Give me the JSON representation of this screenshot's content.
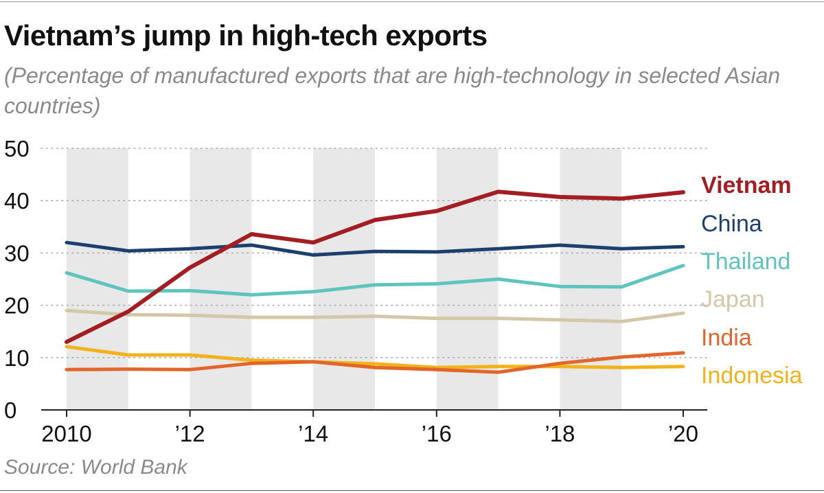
{
  "title": "Vietnam’s jump in high-tech exports",
  "subtitle": "(Percentage of manufactured exports that are high-technology in selected Asian countries)",
  "source": "Source: World Bank",
  "chart_data": {
    "type": "line",
    "title": "Vietnam’s jump in high-tech exports",
    "subtitle": "(Percentage of manufactured exports that are high-technology in selected Asian countries)",
    "xlabel": "",
    "ylabel": "",
    "x": [
      2010,
      2011,
      2012,
      2013,
      2014,
      2015,
      2016,
      2017,
      2018,
      2019,
      2020
    ],
    "xlim": [
      2010,
      2020
    ],
    "ylim": [
      0,
      50
    ],
    "x_ticks": [
      {
        "value": 2010,
        "label": "2010"
      },
      {
        "value": 2012,
        "label": "’12"
      },
      {
        "value": 2014,
        "label": "’14"
      },
      {
        "value": 2016,
        "label": "’16"
      },
      {
        "value": 2018,
        "label": "’18"
      },
      {
        "value": 2020,
        "label": "’20"
      }
    ],
    "y_ticks": [
      {
        "value": 0,
        "label": "0"
      },
      {
        "value": 10,
        "label": "10"
      },
      {
        "value": 20,
        "label": "20"
      },
      {
        "value": 30,
        "label": "30"
      },
      {
        "value": 40,
        "label": "40"
      },
      {
        "value": 50,
        "label": "50"
      }
    ],
    "shaded_intervals": [
      [
        2010,
        2011
      ],
      [
        2012,
        2013
      ],
      [
        2014,
        2015
      ],
      [
        2016,
        2017
      ],
      [
        2018,
        2019
      ]
    ],
    "shade_color": "#e8e8e8",
    "grid": "dotted horizontal",
    "legend_placement": "right, labels at line ends",
    "series": [
      {
        "name": "Vietnam",
        "color": "#a31e23",
        "emphasis": true,
        "values": [
          13.0,
          18.8,
          27.2,
          33.6,
          32.0,
          36.3,
          38.0,
          41.7,
          40.7,
          40.4,
          41.6
        ]
      },
      {
        "name": "China",
        "color": "#1d3f6e",
        "values": [
          32.0,
          30.4,
          30.8,
          31.5,
          29.6,
          30.3,
          30.2,
          30.8,
          31.5,
          30.8,
          31.2
        ]
      },
      {
        "name": "Thailand",
        "color": "#5ec4bd",
        "values": [
          26.2,
          22.7,
          22.8,
          22.0,
          22.6,
          23.9,
          24.1,
          25.0,
          23.6,
          23.5,
          27.6
        ]
      },
      {
        "name": "Japan",
        "color": "#d2c8a8",
        "values": [
          19.0,
          18.2,
          18.1,
          17.7,
          17.7,
          17.9,
          17.5,
          17.5,
          17.2,
          16.9,
          18.5
        ]
      },
      {
        "name": "India",
        "color": "#e2662b",
        "values": [
          7.7,
          7.8,
          7.7,
          8.9,
          9.2,
          8.1,
          7.7,
          7.2,
          8.9,
          10.1,
          10.9
        ]
      },
      {
        "name": "Indonesia",
        "color": "#f1b21a",
        "values": [
          12.1,
          10.5,
          10.5,
          9.5,
          9.2,
          8.8,
          8.1,
          8.3,
          8.3,
          8.1,
          8.3
        ]
      }
    ]
  }
}
